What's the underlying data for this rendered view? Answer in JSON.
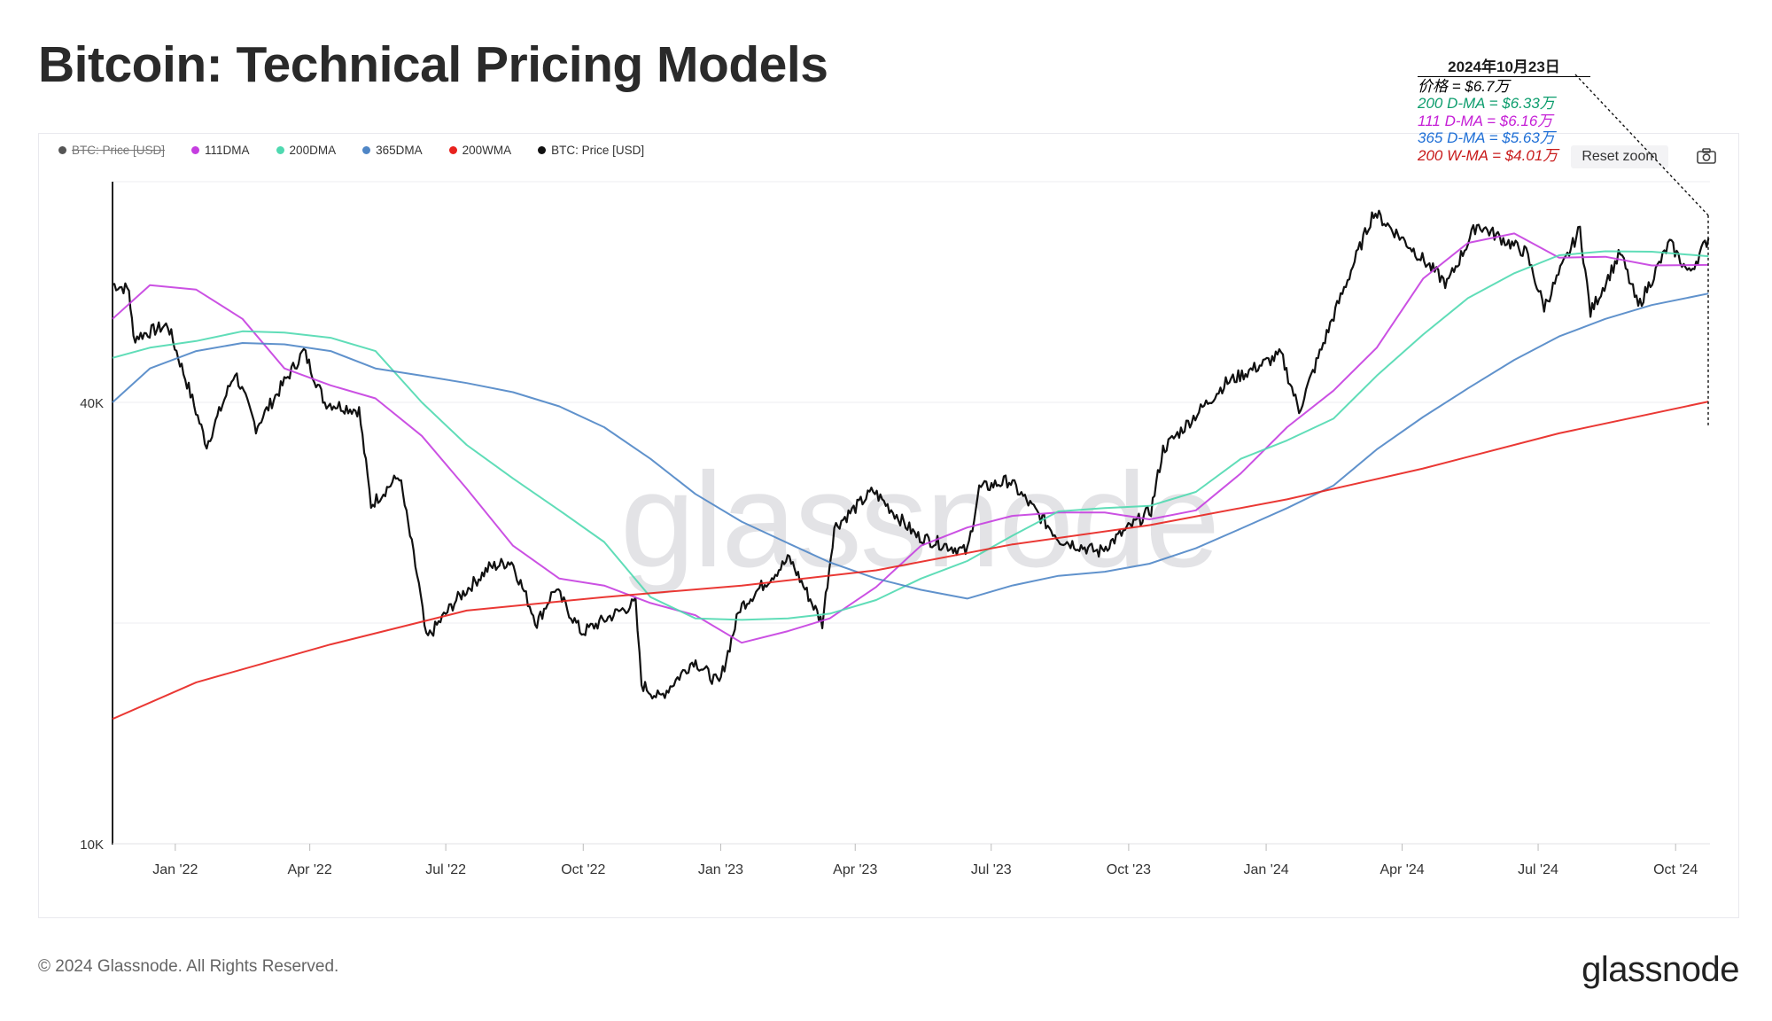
{
  "title": "Bitcoin: Technical Pricing Models",
  "legend": [
    {
      "label": "BTC: Price [USD]",
      "color": "#555555",
      "hidden": true
    },
    {
      "label": "111DMA",
      "color": "#c53ee0",
      "hidden": false
    },
    {
      "label": "200DMA",
      "color": "#4fd9b0",
      "hidden": false
    },
    {
      "label": "365DMA",
      "color": "#4f86c6",
      "hidden": false
    },
    {
      "label": "200WMA",
      "color": "#e8221e",
      "hidden": false
    },
    {
      "label": "BTC: Price [USD]",
      "color": "#111111",
      "hidden": false
    }
  ],
  "reset_zoom": "Reset zoom",
  "camera_icon": "camera-icon",
  "watermark": "glassnode",
  "footer": "© 2024 Glassnode. All Rights Reserved.",
  "brand": "glassnode",
  "annotation": {
    "date": "2024年10月23日",
    "lines": [
      {
        "text": "价格 = $6.7万",
        "color": "#000000"
      },
      {
        "text": "200 D-MA = $6.33万",
        "color": "#0e9e6e"
      },
      {
        "text": "111 D-MA = $6.16万",
        "color": "#c51fd6"
      },
      {
        "text": "365 D-MA = $5.63万",
        "color": "#1f6fd6"
      },
      {
        "text": "200 W-MA = $4.01万",
        "color": "#c81b1b"
      }
    ]
  },
  "chart_data": {
    "type": "line",
    "yscale": "log",
    "ylim": [
      10000,
      80000
    ],
    "y_ticks": [
      {
        "value": 10000,
        "label": "10K"
      },
      {
        "value": 40000,
        "label": "40K"
      }
    ],
    "x_ticks": [
      "Jan '22",
      "Apr '22",
      "Jul '22",
      "Oct '22",
      "Jan '23",
      "Apr '23",
      "Jul '23",
      "Oct '23",
      "Jan '24",
      "Apr '24",
      "Jul '24",
      "Oct '24"
    ],
    "x_tick_dates": [
      "2022-01-01",
      "2022-04-01",
      "2022-07-01",
      "2022-10-01",
      "2023-01-01",
      "2023-04-01",
      "2023-07-01",
      "2023-10-01",
      "2024-01-01",
      "2024-04-01",
      "2024-07-01",
      "2024-10-01"
    ],
    "x_range": [
      "2021-11-20",
      "2024-10-24"
    ],
    "grid": true,
    "series": [
      {
        "name": "BTC: Price [USD]",
        "color": "#111111",
        "dates": [
          "2021-11-20",
          "2021-12-01",
          "2021-12-04",
          "2021-12-27",
          "2022-01-10",
          "2022-01-22",
          "2022-02-10",
          "2022-02-24",
          "2022-03-28",
          "2022-04-11",
          "2022-05-04",
          "2022-05-12",
          "2022-05-31",
          "2022-06-13",
          "2022-06-18",
          "2022-07-08",
          "2022-07-30",
          "2022-08-14",
          "2022-08-31",
          "2022-09-12",
          "2022-09-30",
          "2022-10-26",
          "2022-11-05",
          "2022-11-09",
          "2022-11-21",
          "2022-12-14",
          "2022-12-31",
          "2023-01-14",
          "2023-02-16",
          "2023-03-10",
          "2023-03-18",
          "2023-04-13",
          "2023-05-12",
          "2023-06-15",
          "2023-06-23",
          "2023-07-13",
          "2023-08-16",
          "2023-09-11",
          "2023-10-16",
          "2023-10-24",
          "2023-12-05",
          "2024-01-11",
          "2024-01-23",
          "2024-02-14",
          "2024-03-13",
          "2024-04-04",
          "2024-05-01",
          "2024-05-21",
          "2024-06-23",
          "2024-07-05",
          "2024-07-29",
          "2024-08-05",
          "2024-08-25",
          "2024-09-06",
          "2024-09-27",
          "2024-10-10",
          "2024-10-23"
        ],
        "values": [
          58000,
          57000,
          49000,
          51000,
          41800,
          35000,
          44000,
          37000,
          47000,
          40000,
          39000,
          29000,
          31800,
          22500,
          19000,
          21500,
          23800,
          24300,
          20000,
          22300,
          19400,
          20800,
          21300,
          16500,
          15800,
          17800,
          16500,
          21000,
          24500,
          20000,
          27000,
          30300,
          26300,
          25000,
          30500,
          31300,
          26000,
          25000,
          28500,
          34500,
          42500,
          46500,
          39000,
          51800,
          72800,
          66000,
          58000,
          70000,
          64000,
          54000,
          69000,
          53000,
          64000,
          54000,
          66000,
          60000,
          67000
        ]
      },
      {
        "name": "111DMA",
        "color": "#c53ee0",
        "dates": [
          "2021-11-20",
          "2021-12-15",
          "2022-01-15",
          "2022-02-15",
          "2022-03-15",
          "2022-04-15",
          "2022-05-15",
          "2022-06-15",
          "2022-07-15",
          "2022-08-15",
          "2022-09-15",
          "2022-10-15",
          "2022-11-15",
          "2022-12-15",
          "2023-01-15",
          "2023-02-15",
          "2023-03-15",
          "2023-04-15",
          "2023-05-15",
          "2023-06-15",
          "2023-07-15",
          "2023-08-15",
          "2023-09-15",
          "2023-10-15",
          "2023-11-15",
          "2023-12-15",
          "2024-01-15",
          "2024-02-15",
          "2024-03-15",
          "2024-04-15",
          "2024-05-15",
          "2024-06-15",
          "2024-07-15",
          "2024-08-15",
          "2024-09-15",
          "2024-10-23"
        ],
        "values": [
          52000,
          57800,
          57000,
          52000,
          44500,
          42200,
          40500,
          36000,
          30500,
          25500,
          23000,
          22500,
          21300,
          20500,
          18800,
          19500,
          20300,
          22400,
          25500,
          27000,
          28000,
          28300,
          28300,
          27700,
          28500,
          32000,
          37000,
          41500,
          47500,
          59000,
          66000,
          68000,
          63000,
          63200,
          61500,
          61600
        ]
      },
      {
        "name": "200DMA",
        "color": "#4fd9b0",
        "dates": [
          "2021-11-20",
          "2021-12-15",
          "2022-01-15",
          "2022-02-15",
          "2022-03-15",
          "2022-04-15",
          "2022-05-15",
          "2022-06-15",
          "2022-07-15",
          "2022-08-15",
          "2022-09-15",
          "2022-10-15",
          "2022-11-15",
          "2022-12-15",
          "2023-01-15",
          "2023-02-15",
          "2023-03-15",
          "2023-04-15",
          "2023-05-15",
          "2023-06-15",
          "2023-07-15",
          "2023-08-15",
          "2023-09-15",
          "2023-10-15",
          "2023-11-15",
          "2023-12-15",
          "2024-01-15",
          "2024-02-15",
          "2024-03-15",
          "2024-04-15",
          "2024-05-15",
          "2024-06-15",
          "2024-07-15",
          "2024-08-15",
          "2024-09-15",
          "2024-10-23"
        ],
        "values": [
          46000,
          47500,
          48500,
          50000,
          49800,
          49000,
          47000,
          40000,
          35000,
          31500,
          28500,
          25800,
          21700,
          20300,
          20200,
          20300,
          20600,
          21500,
          23000,
          24300,
          26300,
          28400,
          28700,
          28900,
          30200,
          33500,
          35500,
          38000,
          43500,
          49500,
          55500,
          60000,
          63500,
          64300,
          64200,
          63300
        ]
      },
      {
        "name": "365DMA",
        "color": "#4f86c6",
        "dates": [
          "2021-11-20",
          "2021-12-15",
          "2022-01-15",
          "2022-02-15",
          "2022-03-15",
          "2022-04-15",
          "2022-05-15",
          "2022-06-15",
          "2022-07-15",
          "2022-08-15",
          "2022-09-15",
          "2022-10-15",
          "2022-11-15",
          "2022-12-15",
          "2023-01-15",
          "2023-02-15",
          "2023-03-15",
          "2023-04-15",
          "2023-05-15",
          "2023-06-15",
          "2023-07-15",
          "2023-08-15",
          "2023-09-15",
          "2023-10-15",
          "2023-11-15",
          "2023-12-15",
          "2024-01-15",
          "2024-02-15",
          "2024-03-15",
          "2024-04-15",
          "2024-05-15",
          "2024-06-15",
          "2024-07-15",
          "2024-08-15",
          "2024-09-15",
          "2024-10-23"
        ],
        "values": [
          40000,
          44500,
          47000,
          48200,
          48000,
          47000,
          44500,
          43500,
          42500,
          41300,
          39500,
          37000,
          33500,
          30000,
          27500,
          25700,
          24200,
          23000,
          22200,
          21600,
          22500,
          23200,
          23500,
          24100,
          25300,
          26900,
          28700,
          30800,
          34500,
          38200,
          41800,
          45700,
          49200,
          52000,
          54300,
          56300
        ]
      },
      {
        "name": "200WMA",
        "color": "#e8221e",
        "dates": [
          "2021-11-20",
          "2022-01-15",
          "2022-04-15",
          "2022-07-15",
          "2022-10-15",
          "2023-01-15",
          "2023-04-15",
          "2023-07-15",
          "2023-10-15",
          "2024-01-15",
          "2024-04-15",
          "2024-07-15",
          "2024-10-23"
        ],
        "values": [
          14800,
          16600,
          18700,
          20800,
          21700,
          22500,
          23600,
          25600,
          27200,
          29500,
          32500,
          36300,
          40100
        ]
      }
    ]
  }
}
